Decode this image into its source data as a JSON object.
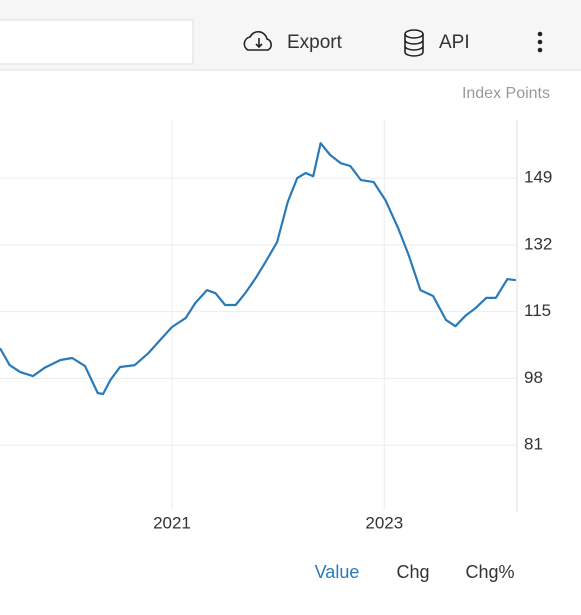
{
  "toolbar": {
    "export": "Export",
    "api": "API"
  },
  "chart_data": {
    "type": "line",
    "unit_label": "Index Points",
    "color": "#2a7ab8",
    "x": [
      2019.38,
      2019.47,
      2019.57,
      2019.69,
      2019.8,
      2019.95,
      2020.06,
      2020.18,
      2020.26,
      2020.3,
      2020.35,
      2020.42,
      2020.51,
      2020.65,
      2020.78,
      2020.89,
      2021.0,
      2021.13,
      2021.22,
      2021.33,
      2021.41,
      2021.5,
      2021.6,
      2021.69,
      2021.79,
      2021.88,
      2021.99,
      2022.09,
      2022.18,
      2022.26,
      2022.33,
      2022.4,
      2022.49,
      2022.59,
      2022.68,
      2022.78,
      2022.9,
      2023.01,
      2023.13,
      2023.23,
      2023.34,
      2023.46,
      2023.58,
      2023.67,
      2023.77,
      2023.86,
      2023.96,
      2024.05,
      2024.16,
      2024.24
    ],
    "values": [
      105.7,
      101.4,
      99.6,
      98.6,
      100.7,
      102.7,
      103.2,
      101.2,
      96.6,
      94.3,
      94.0,
      97.6,
      100.9,
      101.4,
      104.5,
      107.8,
      111.1,
      113.4,
      117.2,
      120.5,
      119.7,
      116.7,
      116.7,
      119.7,
      123.6,
      127.6,
      132.7,
      142.9,
      149.0,
      150.3,
      149.5,
      157.9,
      154.9,
      152.8,
      152.1,
      148.5,
      148.0,
      143.4,
      136.3,
      129.4,
      120.5,
      119.0,
      112.9,
      111.3,
      114.1,
      115.9,
      118.5,
      118.5,
      123.3,
      123.0
    ],
    "xlim": [
      2019.38,
      2024.25
    ],
    "xticks": [
      2021,
      2023
    ],
    "ylim": [
      64.5,
      163.8
    ],
    "yticks": [
      81,
      98,
      115,
      132,
      149
    ],
    "grid": true
  },
  "tabs": [
    "Value",
    "Chg",
    "Chg%"
  ]
}
